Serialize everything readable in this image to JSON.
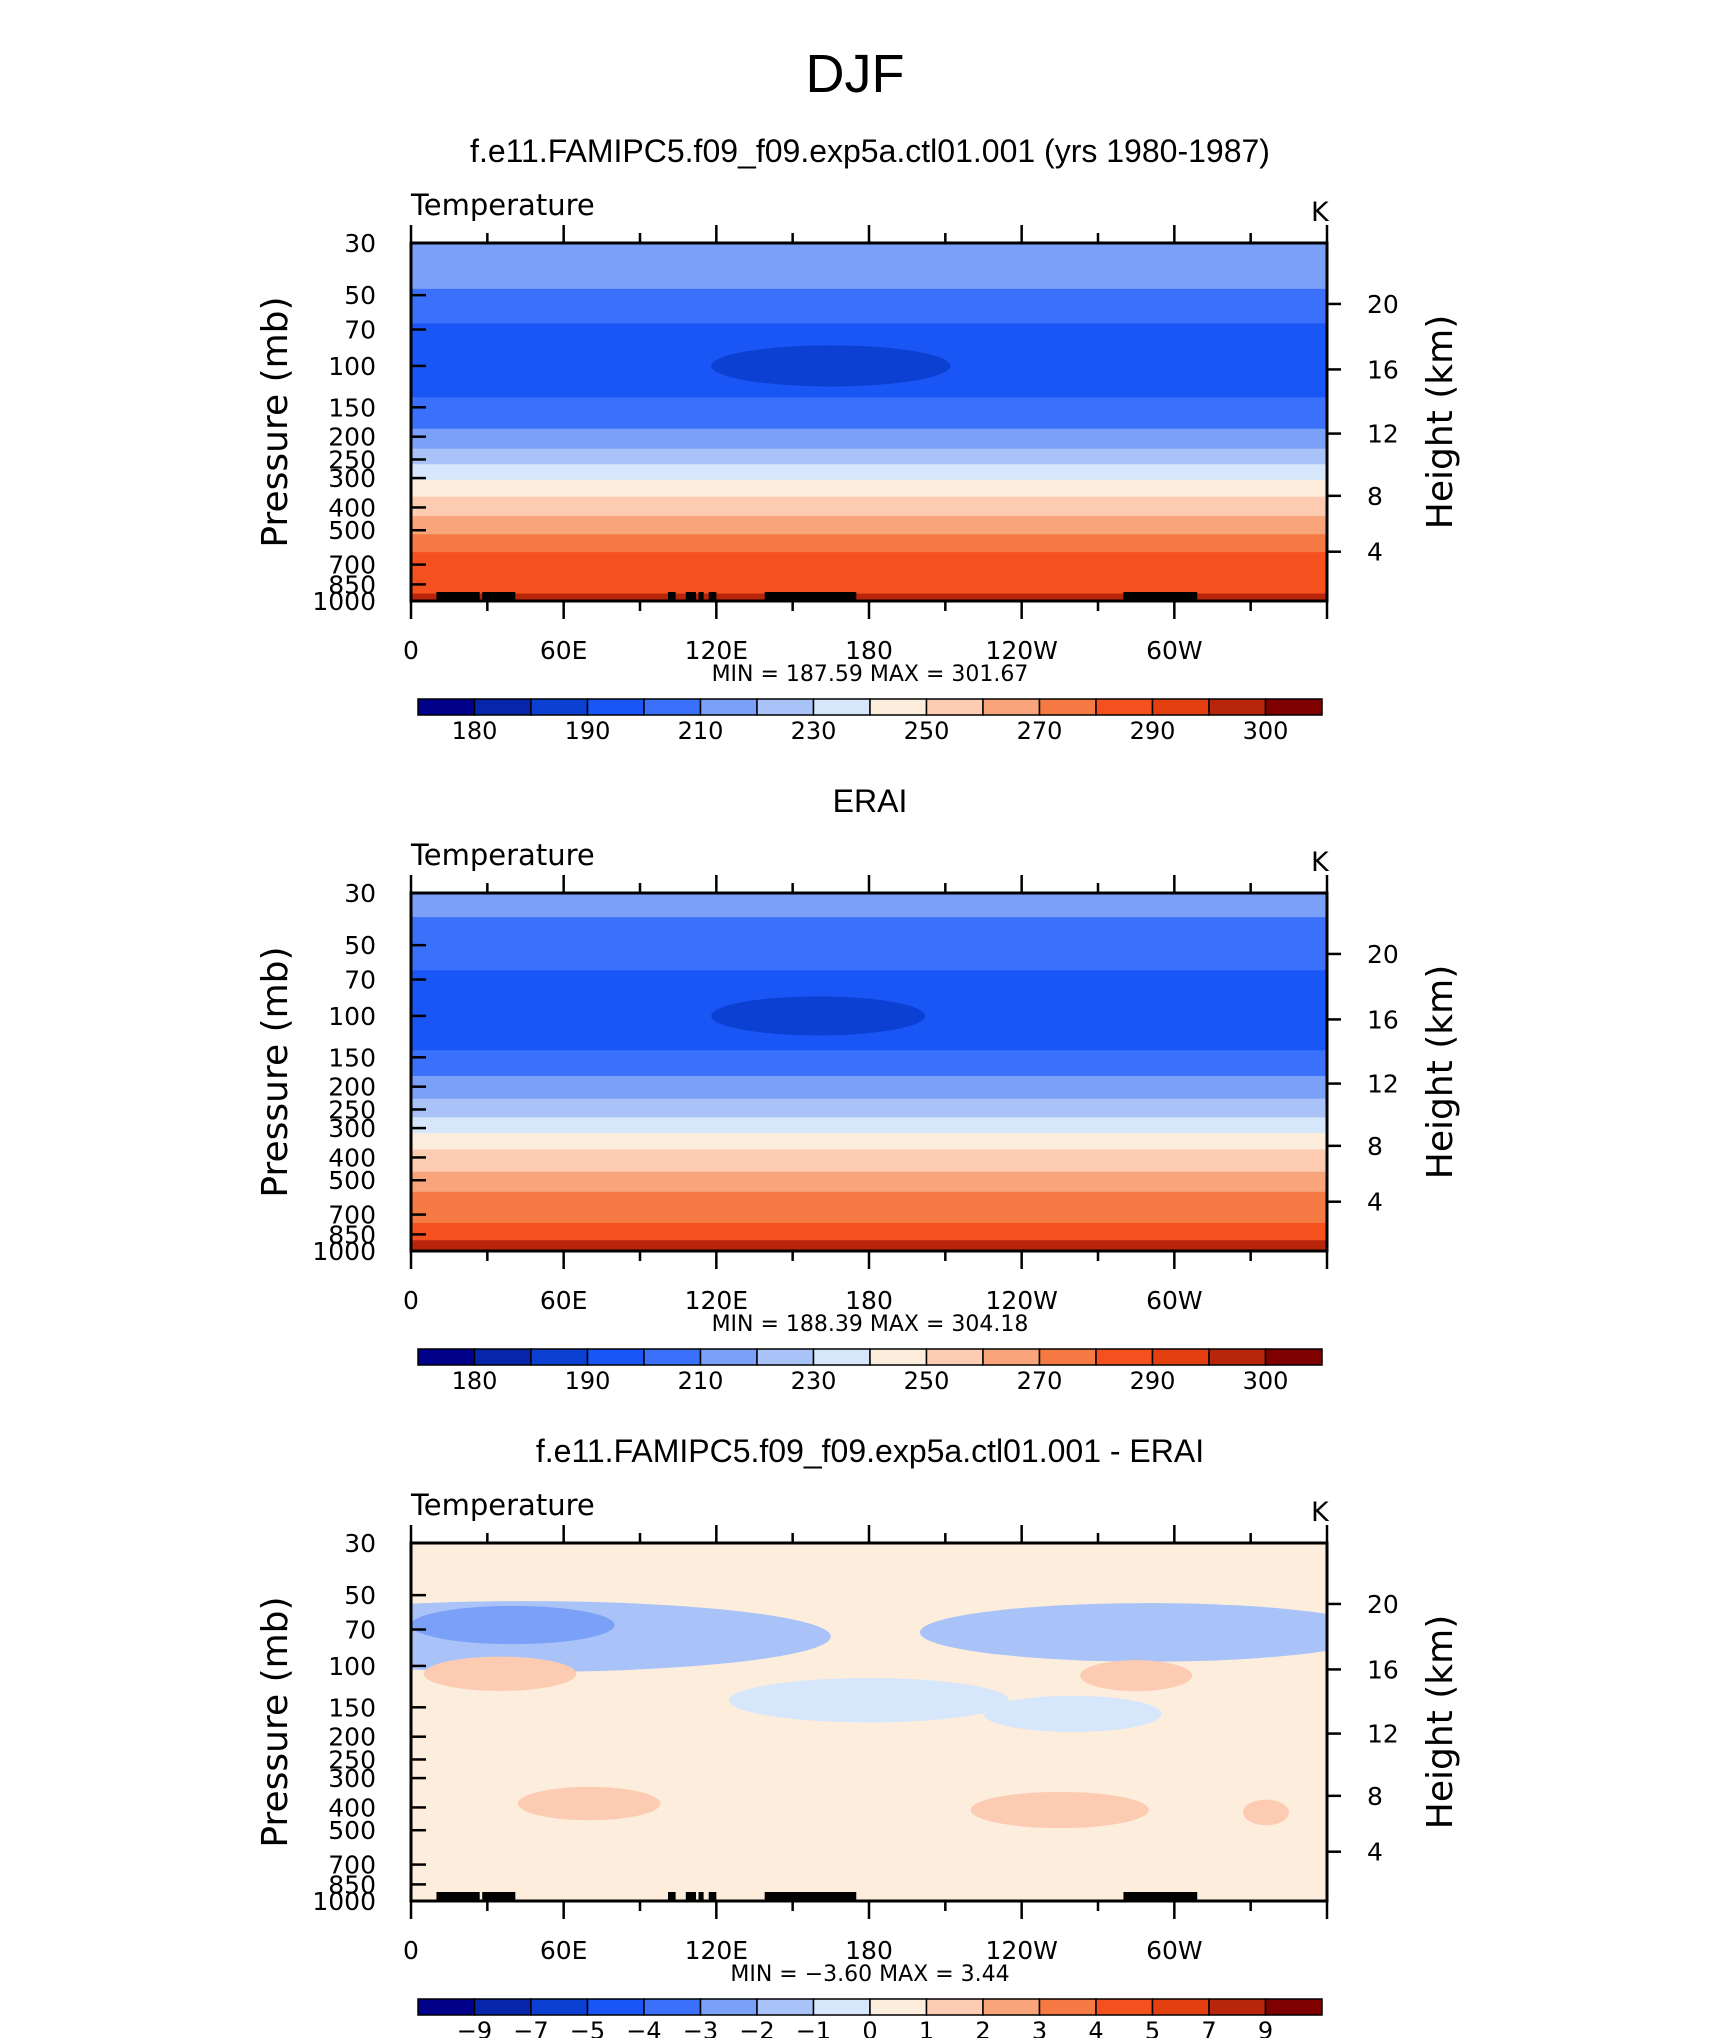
{
  "page": {
    "title": "DJF"
  },
  "chart_data": [
    {
      "type": "heatmap",
      "title": "f.e11.FAMIPC5.f09_f09.exp5a.ctl01.001 (yrs 1980-1987)",
      "subtitle": "Temperature",
      "units": "K",
      "ylabel": "Pressure (mb)",
      "y2label": "Height (km)",
      "x_ticks": [
        "0",
        "60E",
        "120E",
        "180",
        "120W",
        "60W"
      ],
      "x_tick_lon": [
        0,
        60,
        120,
        180,
        240,
        300
      ],
      "xlim": [
        0,
        360
      ],
      "y_ticks": [
        30,
        50,
        70,
        100,
        150,
        200,
        250,
        300,
        400,
        500,
        700,
        850,
        1000
      ],
      "y_scale": "log",
      "ylim": [
        1000,
        30
      ],
      "y2_ticks": [
        20,
        16,
        12,
        8,
        4
      ],
      "y2_pressures": [
        54.5,
        103.5,
        194,
        357,
        617
      ],
      "minmax_text": "MIN  =  187.59    MAX  =  301.67",
      "min": 187.59,
      "max": 301.67,
      "bands": [
        {
          "p_top": 30,
          "p_bot": 47,
          "value": 215
        },
        {
          "p_top": 47,
          "p_bot": 66,
          "value": 205
        },
        {
          "p_top": 66,
          "p_bot": 136,
          "value": 195
        },
        {
          "p_top": 136,
          "p_bot": 185,
          "value": 205
        },
        {
          "p_top": 185,
          "p_bot": 225,
          "value": 215
        },
        {
          "p_top": 225,
          "p_bot": 262,
          "value": 225
        },
        {
          "p_top": 262,
          "p_bot": 305,
          "value": 235
        },
        {
          "p_top": 305,
          "p_bot": 360,
          "value": 245
        },
        {
          "p_top": 360,
          "p_bot": 435,
          "value": 255
        },
        {
          "p_top": 435,
          "p_bot": 520,
          "value": 265
        },
        {
          "p_top": 520,
          "p_bot": 620,
          "value": 275
        },
        {
          "p_top": 620,
          "p_bot": 930,
          "value": 285
        },
        {
          "p_top": 930,
          "p_bot": 1000,
          "value": 295
        }
      ],
      "blobs": [
        {
          "lon": 165,
          "lon_halfwidth": 47,
          "p_center": 100,
          "value": 185
        }
      ],
      "topography": [
        [
          10,
          27
        ],
        [
          28,
          34
        ],
        [
          34,
          41
        ],
        [
          101,
          104
        ],
        [
          108,
          112
        ],
        [
          113,
          115
        ],
        [
          117,
          120
        ],
        [
          139,
          175
        ],
        [
          280,
          309
        ]
      ],
      "colorbar": {
        "colors": [
          "#00008b",
          "#0626aa",
          "#0c40d3",
          "#1a55f5",
          "#3a70fa",
          "#7ba0f7",
          "#a9c3f9",
          "#d7e7fb",
          "#fdeddc",
          "#fccbb1",
          "#f8a57c",
          "#f67a43",
          "#f4511e",
          "#e43f10",
          "#b8250a",
          "#7f0000"
        ],
        "levels": [
          175,
          180,
          185,
          190,
          200,
          210,
          220,
          230,
          240,
          250,
          260,
          270,
          280,
          290,
          295,
          300
        ],
        "labels": [
          "180",
          "190",
          "210",
          "230",
          "250",
          "270",
          "290",
          "300"
        ]
      }
    },
    {
      "type": "heatmap",
      "title": "ERAI",
      "subtitle": "Temperature",
      "units": "K",
      "ylabel": "Pressure (mb)",
      "y2label": "Height (km)",
      "x_ticks": [
        "0",
        "60E",
        "120E",
        "180",
        "120W",
        "60W"
      ],
      "x_tick_lon": [
        0,
        60,
        120,
        180,
        240,
        300
      ],
      "xlim": [
        0,
        360
      ],
      "y_ticks": [
        30,
        50,
        70,
        100,
        150,
        200,
        250,
        300,
        400,
        500,
        700,
        850,
        1000
      ],
      "y_scale": "log",
      "ylim": [
        1000,
        30
      ],
      "y2_ticks": [
        20,
        16,
        12,
        8,
        4
      ],
      "y2_pressures": [
        54.5,
        103.5,
        194,
        357,
        617
      ],
      "minmax_text": "MIN  =  188.39    MAX  =  304.18",
      "min": 188.39,
      "max": 304.18,
      "bands": [
        {
          "p_top": 30,
          "p_bot": 38,
          "value": 215
        },
        {
          "p_top": 38,
          "p_bot": 64,
          "value": 205
        },
        {
          "p_top": 64,
          "p_bot": 140,
          "value": 195
        },
        {
          "p_top": 140,
          "p_bot": 180,
          "value": 205
        },
        {
          "p_top": 180,
          "p_bot": 225,
          "value": 215
        },
        {
          "p_top": 225,
          "p_bot": 270,
          "value": 225
        },
        {
          "p_top": 270,
          "p_bot": 315,
          "value": 235
        },
        {
          "p_top": 315,
          "p_bot": 370,
          "value": 245
        },
        {
          "p_top": 370,
          "p_bot": 460,
          "value": 255
        },
        {
          "p_top": 460,
          "p_bot": 560,
          "value": 265
        },
        {
          "p_top": 560,
          "p_bot": 760,
          "value": 275
        },
        {
          "p_top": 760,
          "p_bot": 900,
          "value": 285
        },
        {
          "p_top": 900,
          "p_bot": 1000,
          "value": 295
        }
      ],
      "blobs": [
        {
          "lon": 160,
          "lon_halfwidth": 42,
          "p_center": 100,
          "value": 185
        }
      ],
      "topography": [],
      "colorbar": {
        "colors": [
          "#00008b",
          "#0626aa",
          "#0c40d3",
          "#1a55f5",
          "#3a70fa",
          "#7ba0f7",
          "#a9c3f9",
          "#d7e7fb",
          "#fdeddc",
          "#fccbb1",
          "#f8a57c",
          "#f67a43",
          "#f4511e",
          "#e43f10",
          "#b8250a",
          "#7f0000"
        ],
        "levels": [
          175,
          180,
          185,
          190,
          200,
          210,
          220,
          230,
          240,
          250,
          260,
          270,
          280,
          290,
          295,
          300
        ],
        "labels": [
          "180",
          "190",
          "210",
          "230",
          "250",
          "270",
          "290",
          "300"
        ]
      }
    },
    {
      "type": "heatmap",
      "title": "f.e11.FAMIPC5.f09_f09.exp5a.ctl01.001 - ERAI",
      "subtitle": "Temperature",
      "units": "K",
      "ylabel": "Pressure (mb)",
      "y2label": "Height (km)",
      "x_ticks": [
        "0",
        "60E",
        "120E",
        "180",
        "120W",
        "60W"
      ],
      "x_tick_lon": [
        0,
        60,
        120,
        180,
        240,
        300
      ],
      "xlim": [
        0,
        360
      ],
      "y_ticks": [
        30,
        50,
        70,
        100,
        150,
        200,
        250,
        300,
        400,
        500,
        700,
        850,
        1000
      ],
      "y_scale": "log",
      "ylim": [
        1000,
        30
      ],
      "y2_ticks": [
        20,
        16,
        12,
        8,
        4
      ],
      "y2_pressures": [
        54.5,
        103.5,
        194,
        357,
        617
      ],
      "minmax_text": "MIN  =    −3.60    MAX  =      3.44",
      "min": -3.6,
      "max": 3.44,
      "bands": [
        {
          "p_top": 30,
          "p_bot": 1000,
          "value": -0.5
        }
      ],
      "blobs": [
        {
          "lon": 45,
          "lon_halfwidth": 120,
          "p_center": 75,
          "value": -2.5
        },
        {
          "lon": 290,
          "lon_halfwidth": 90,
          "p_center": 72,
          "value": -2.5
        },
        {
          "lon": 40,
          "lon_halfwidth": 40,
          "p_center": 67,
          "value": -3.5
        },
        {
          "lon": 180,
          "lon_halfwidth": 55,
          "p_center": 140,
          "value": -1.5
        },
        {
          "lon": 260,
          "lon_halfwidth": 35,
          "p_center": 160,
          "value": -1.5
        },
        {
          "lon": 35,
          "lon_halfwidth": 30,
          "p_center": 108,
          "value": 0.5
        },
        {
          "lon": 285,
          "lon_halfwidth": 22,
          "p_center": 110,
          "value": 0.5
        },
        {
          "lon": 70,
          "lon_halfwidth": 28,
          "p_center": 385,
          "value": 0.5
        },
        {
          "lon": 255,
          "lon_halfwidth": 35,
          "p_center": 410,
          "value": 0.5
        },
        {
          "lon": 336,
          "lon_halfwidth": 9,
          "p_center": 420,
          "value": 0.5
        }
      ],
      "topography": [
        [
          10,
          27
        ],
        [
          28,
          34
        ],
        [
          34,
          41
        ],
        [
          101,
          104
        ],
        [
          108,
          112
        ],
        [
          113,
          115
        ],
        [
          117,
          120
        ],
        [
          139,
          175
        ],
        [
          280,
          309
        ]
      ],
      "colorbar": {
        "colors": [
          "#00008b",
          "#0626aa",
          "#0c40d3",
          "#1a55f5",
          "#3a70fa",
          "#7ba0f7",
          "#a9c3f9",
          "#d7e7fb",
          "#fdeddc",
          "#fccbb1",
          "#f8a57c",
          "#f67a43",
          "#f4511e",
          "#e43f10",
          "#b8250a",
          "#7f0000"
        ],
        "levels": [
          -11,
          -9,
          -8,
          -7,
          -5,
          -4,
          -3,
          -2,
          -1,
          0,
          1,
          2,
          3,
          4,
          5,
          7,
          9,
          11
        ],
        "labels": [
          "−9",
          "−7",
          "−5",
          "−4",
          "−3",
          "−2",
          "−1",
          "0",
          "1",
          "2",
          "3",
          "4",
          "5",
          "7",
          "9"
        ]
      }
    }
  ]
}
